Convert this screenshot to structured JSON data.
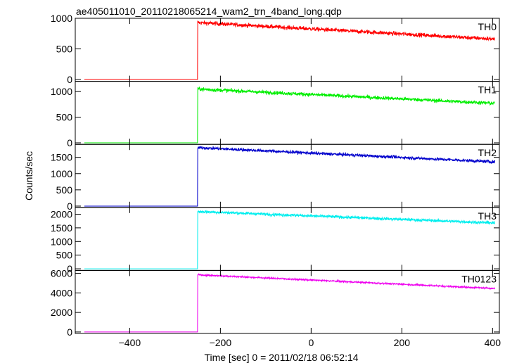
{
  "chart_data": {
    "type": "line",
    "title": "ae405011010_20110218065214_wam2_trn_4band_long.qdp",
    "xlabel": "Time [sec] 0 = 2011/02/18 06:52:14",
    "ylabel": "Counts/sec",
    "xlim": [
      -520,
      415
    ],
    "x_ticks": [
      -400,
      -200,
      0,
      200,
      400
    ],
    "x_tick_labels": [
      "−400",
      "−200",
      "0",
      "200",
      "400"
    ],
    "step_time": -250,
    "data_start": -500,
    "data_end": 405,
    "panels": [
      {
        "name": "TH0",
        "color": "#ff0000",
        "ylim": [
          -30,
          1000
        ],
        "yticks": [
          0,
          500,
          1000
        ],
        "baseline": 0,
        "peak": 930,
        "end": 660,
        "noise": 28
      },
      {
        "name": "TH1",
        "color": "#00ee00",
        "ylim": [
          -30,
          1200
        ],
        "yticks": [
          0,
          500,
          1000
        ],
        "baseline": 0,
        "peak": 1050,
        "end": 770,
        "noise": 30
      },
      {
        "name": "TH2",
        "color": "#0000cc",
        "ylim": [
          -40,
          1900
        ],
        "yticks": [
          0,
          500,
          1000,
          1500
        ],
        "baseline": 0,
        "peak": 1800,
        "end": 1360,
        "noise": 40
      },
      {
        "name": "TH3",
        "color": "#00eeee",
        "ylim": [
          -60,
          2250
        ],
        "yticks": [
          0,
          500,
          1000,
          1500,
          2000
        ],
        "baseline": 0,
        "peak": 2100,
        "end": 1680,
        "noise": 45
      },
      {
        "name": "TH0123",
        "color": "#ee00ee",
        "ylim": [
          -150,
          6300
        ],
        "yticks": [
          0,
          2000,
          4000,
          6000
        ],
        "baseline": 0,
        "peak": 5850,
        "end": 4450,
        "noise": 70
      }
    ]
  }
}
